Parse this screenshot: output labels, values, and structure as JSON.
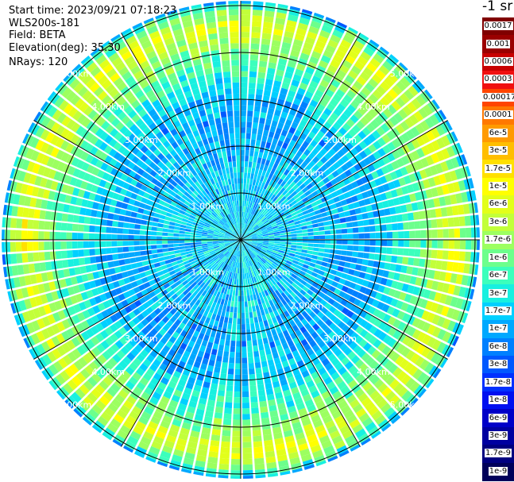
{
  "header": {
    "start_time": "Start time: 2023/09/21 07:18:23",
    "instrument": "WLS200s-181",
    "field": "Field: BETA",
    "elevation": "Elevation(deg): 35.30",
    "nrays": "NRays: 120"
  },
  "colorbar": {
    "unit_label": "-1 sr",
    "labels": [
      "0.0017",
      "0.001",
      "0.0006",
      "0.0003",
      "0.00017",
      "0.0001",
      "6e-5",
      "3e-5",
      "1.7e-5",
      "1e-5",
      "6e-6",
      "3e-6",
      "1.7e-6",
      "1e-6",
      "6e-7",
      "3e-7",
      "1.7e-7",
      "1e-7",
      "6e-8",
      "3e-8",
      "1.7e-8",
      "1e-8",
      "6e-9",
      "3e-9",
      "1.7e-9",
      "1e-9"
    ],
    "colors": [
      "#800000",
      "#9a0000",
      "#c80000",
      "#f01010",
      "#ff4500",
      "#ff7800",
      "#ff9a00",
      "#ffbe00",
      "#ffe000",
      "#ffff00",
      "#e2ff1a",
      "#c2ff3a",
      "#9cff60",
      "#6cff8c",
      "#3cffbc",
      "#18f0e0",
      "#00d0ff",
      "#00a8ff",
      "#0080ff",
      "#0058ff",
      "#0030ff",
      "#0010f0",
      "#0000c8",
      "#0000a0",
      "#000080",
      "#00005a"
    ]
  },
  "range_labels": [
    "1.00km",
    "2.00km",
    "3.00km",
    "4.00km",
    "5.00km"
  ],
  "chart_data": {
    "type": "heatmap",
    "projection": "polar (PPI scan)",
    "field": "BETA",
    "elevation_deg": 35.3,
    "n_rays": 120,
    "range_rings_km": [
      1,
      2,
      3,
      4,
      5
    ],
    "max_range_km": 5.1,
    "color_scale": "log",
    "value_range": [
      1e-09,
      0.0017
    ],
    "radial_profile_km_vs_beta": [
      [
        0.0,
        2e-07
      ],
      [
        0.5,
        1.7e-07
      ],
      [
        1.0,
        1.7e-07
      ],
      [
        1.5,
        1.5e-07
      ],
      [
        2.0,
        1.2e-07
      ],
      [
        2.5,
        1e-07
      ],
      [
        3.0,
        1.3e-07
      ],
      [
        3.5,
        4e-07
      ],
      [
        4.0,
        1e-06
      ],
      [
        4.3,
        2.5e-06
      ],
      [
        4.6,
        5e-06
      ],
      [
        4.8,
        2e-06
      ],
      [
        5.0,
        4e-07
      ],
      [
        5.1,
        6e-08
      ]
    ]
  }
}
